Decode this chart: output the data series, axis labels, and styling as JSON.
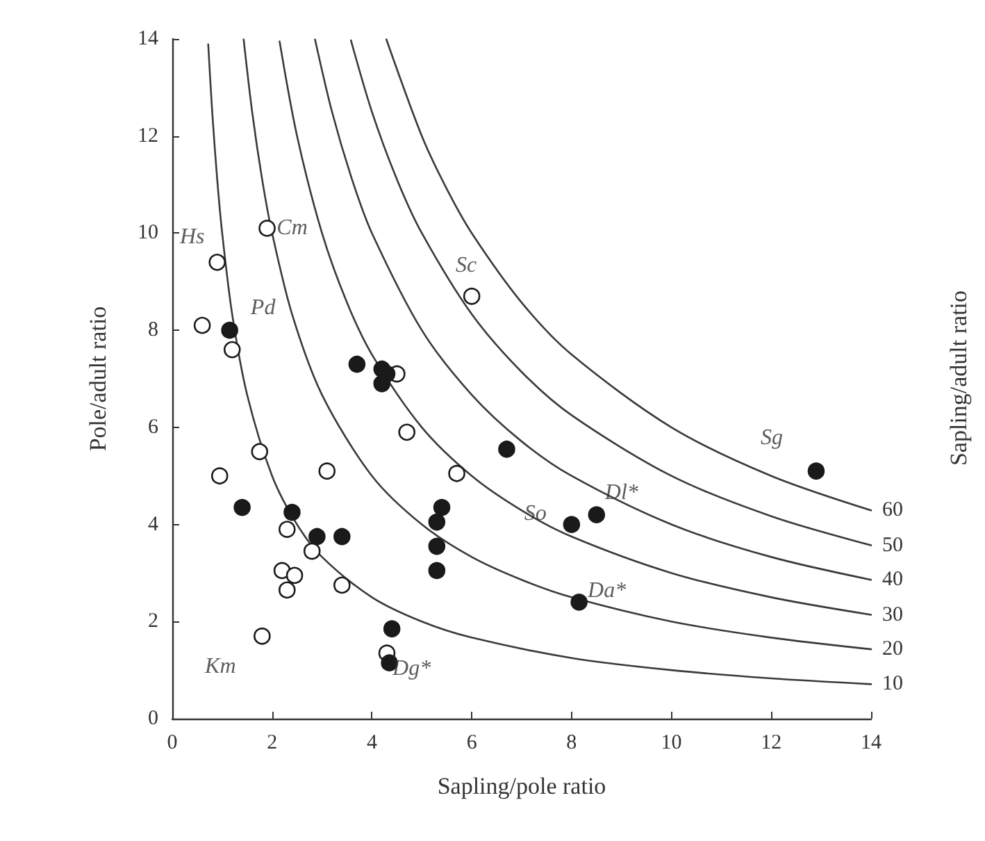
{
  "chart_data": {
    "type": "scatter",
    "xlabel": "Sapling/pole ratio",
    "ylabel": "Pole/adult ratio",
    "y2label": "Sapling/adult ratio",
    "xlim": [
      0,
      14
    ],
    "xticks": [
      0,
      2,
      4,
      6,
      8,
      10,
      12,
      14
    ],
    "ylim": [
      0,
      14
    ],
    "yticks": [
      0,
      2,
      4,
      6,
      8,
      10,
      12,
      14
    ],
    "grid": false,
    "legend": false,
    "series": [
      {
        "type": "scatter",
        "marker": "circle",
        "color": "#ffffff",
        "x": [
          0.6,
          0.9,
          1.9,
          1.2,
          6.0,
          4.5,
          4.7,
          5.7,
          1.75,
          0.95,
          3.1,
          2.3,
          2.8,
          2.2,
          2.45,
          2.3,
          3.4,
          1.8,
          4.3
        ],
        "values": [
          8.1,
          9.4,
          10.1,
          7.6,
          8.7,
          7.1,
          5.9,
          5.05,
          5.5,
          5.0,
          5.1,
          3.9,
          3.45,
          3.05,
          2.95,
          2.65,
          2.75,
          1.7,
          1.35
        ]
      },
      {
        "type": "scatter",
        "marker": "circle",
        "color": "#1a1a1a",
        "x": [
          1.15,
          1.4,
          2.4,
          2.9,
          3.4,
          3.7,
          4.2,
          4.3,
          4.2,
          6.7,
          5.4,
          5.3,
          5.3,
          5.3,
          4.4,
          4.35,
          8.0,
          8.5,
          8.15,
          12.9
        ],
        "values": [
          8.0,
          4.35,
          4.25,
          3.75,
          3.75,
          7.3,
          7.2,
          7.1,
          6.9,
          5.55,
          4.35,
          4.05,
          3.55,
          3.05,
          1.85,
          1.15,
          4.0,
          4.2,
          2.4,
          5.1
        ]
      },
      {
        "type": "line",
        "name": "10",
        "marker": "none",
        "line_style": "solid",
        "color": "#3a3a3a",
        "x": [
          0.72,
          0.8,
          0.9,
          1,
          1.2,
          1.5,
          2,
          2.5,
          3,
          4,
          5,
          6,
          8,
          10,
          12,
          14
        ],
        "values": [
          13.89,
          12.5,
          11.11,
          10,
          8.33,
          6.67,
          5,
          4,
          3.33,
          2.5,
          2,
          1.67,
          1.25,
          1,
          0.83,
          0.71
        ]
      },
      {
        "type": "line",
        "name": "20",
        "marker": "none",
        "line_style": "solid",
        "color": "#3a3a3a",
        "x": [
          1.43,
          1.6,
          1.8,
          2,
          2.4,
          3,
          4,
          5,
          6,
          7,
          8,
          10,
          12,
          14
        ],
        "values": [
          13.99,
          12.5,
          11.11,
          10,
          8.33,
          6.67,
          5,
          4,
          3.33,
          2.86,
          2.5,
          2,
          1.67,
          1.43
        ]
      },
      {
        "type": "line",
        "name": "30",
        "marker": "none",
        "line_style": "solid",
        "color": "#3a3a3a",
        "x": [
          2.15,
          2.5,
          3,
          3.5,
          4,
          5,
          6,
          7,
          8,
          10,
          12,
          14
        ],
        "values": [
          13.95,
          12,
          10,
          8.57,
          7.5,
          6,
          5,
          4.29,
          3.75,
          3,
          2.5,
          2.14
        ]
      },
      {
        "type": "line",
        "name": "40",
        "marker": "none",
        "line_style": "solid",
        "color": "#3a3a3a",
        "x": [
          2.86,
          3.2,
          3.6,
          4,
          5,
          6,
          7,
          8,
          10,
          12,
          14
        ],
        "values": [
          13.99,
          12.5,
          11.11,
          10,
          8,
          6.67,
          5.71,
          5,
          4,
          3.33,
          2.86
        ]
      },
      {
        "type": "line",
        "name": "50",
        "marker": "none",
        "line_style": "solid",
        "color": "#3a3a3a",
        "x": [
          3.58,
          4,
          4.5,
          5,
          6,
          7,
          8,
          10,
          12,
          14
        ],
        "values": [
          13.97,
          12.5,
          11.11,
          10,
          8.33,
          7.14,
          6.25,
          5,
          4.17,
          3.57
        ]
      },
      {
        "type": "line",
        "name": "60",
        "marker": "none",
        "line_style": "solid",
        "color": "#3a3a3a",
        "x": [
          4.29,
          5,
          5.5,
          6,
          7,
          8,
          10,
          12,
          14
        ],
        "values": [
          13.99,
          12,
          10.91,
          10,
          8.57,
          7.5,
          6,
          5,
          4.29
        ]
      }
    ],
    "annotations": [
      {
        "text": "Hs",
        "x": 0.9,
        "y": 9.4
      },
      {
        "text": "Cm",
        "x": 1.9,
        "y": 10.1
      },
      {
        "text": "Pd",
        "x": 1.15,
        "y": 8.0
      },
      {
        "text": "Sc",
        "x": 6.0,
        "y": 8.7
      },
      {
        "text": "Sg",
        "x": 12.9,
        "y": 5.1
      },
      {
        "text": "Dl*",
        "x": 8.5,
        "y": 4.2
      },
      {
        "text": "So",
        "x": 8.0,
        "y": 4.0
      },
      {
        "text": "Da*",
        "x": 8.15,
        "y": 2.4
      },
      {
        "text": "Km",
        "x": 1.8,
        "y": 1.7
      },
      {
        "text": "Dg*",
        "x": 4.35,
        "y": 1.15
      }
    ]
  }
}
